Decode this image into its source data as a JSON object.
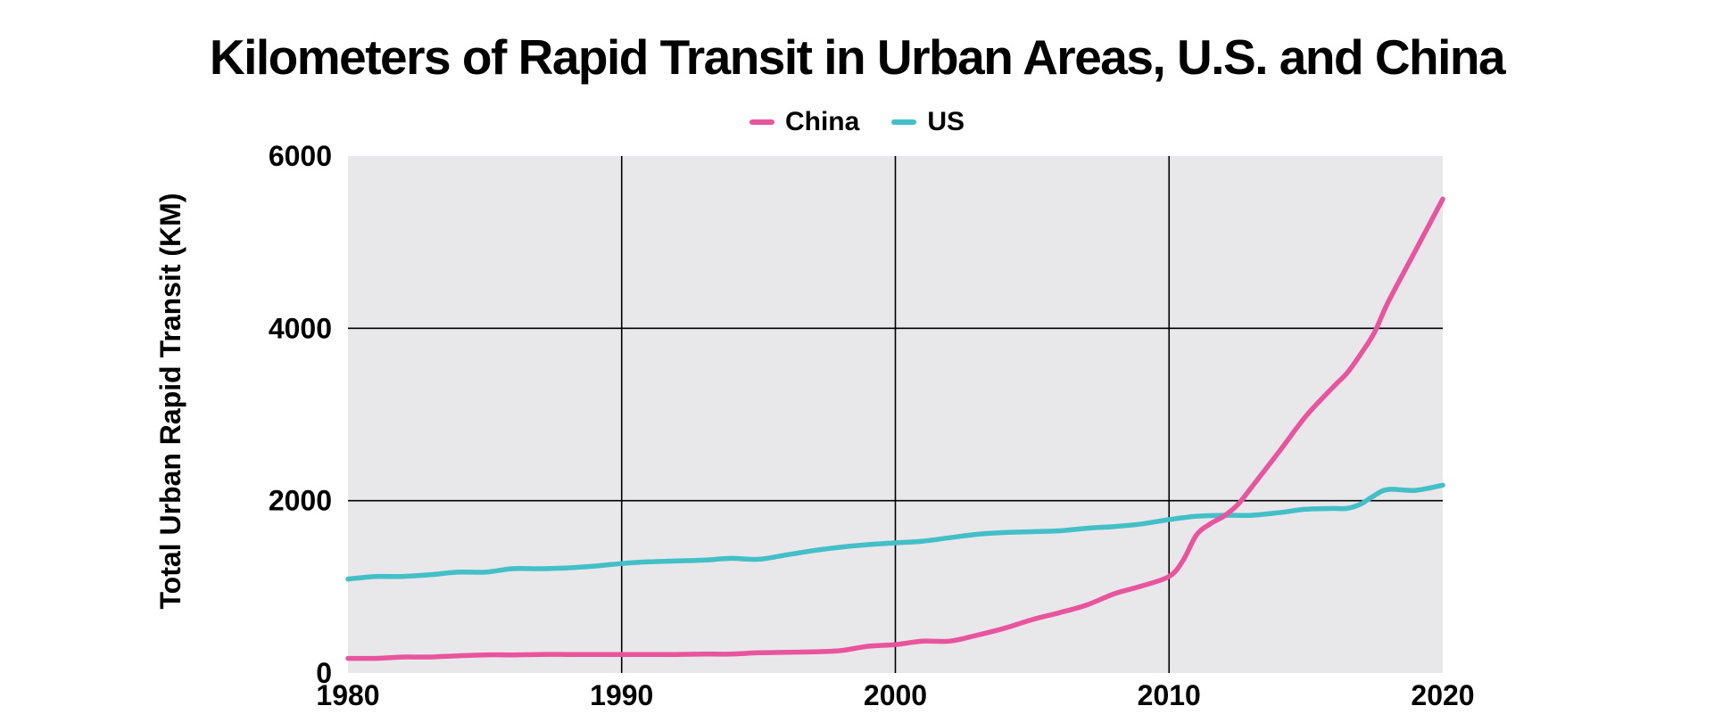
{
  "chart_data": {
    "type": "line",
    "title": "Kilometers of Rapid Transit in Urban Areas, U.S. and China",
    "xlabel": "",
    "ylabel": "Total Urban Rapid Transit (KM)",
    "xlim": [
      1980,
      2020
    ],
    "ylim": [
      0,
      6000
    ],
    "x_ticks": [
      "1980",
      "1990",
      "2000",
      "2010",
      "2020"
    ],
    "y_ticks": [
      "0",
      "2000",
      "4000",
      "6000"
    ],
    "x_tick_values": [
      1980,
      1990,
      2000,
      2010,
      2020
    ],
    "y_tick_values": [
      0,
      2000,
      4000,
      6000
    ],
    "grid": true,
    "legend_position": "top-center",
    "background": "#e8e8ea",
    "series": [
      {
        "name": "China",
        "color": "#e8559e",
        "x": [
          1980,
          1981,
          1982,
          1983,
          1984,
          1985,
          1986,
          1987,
          1988,
          1989,
          1990,
          1991,
          1992,
          1993,
          1994,
          1995,
          1996,
          1997,
          1998,
          1999,
          2000,
          2001,
          2002,
          2003,
          2004,
          2005,
          2006,
          2007,
          2008,
          2009,
          2010,
          2010.5,
          2011,
          2011.5,
          2012,
          2012.5,
          2013,
          2014,
          2015,
          2016,
          2016.5,
          2017,
          2017.5,
          2018,
          2019,
          2020
        ],
        "values": [
          170,
          170,
          185,
          185,
          200,
          210,
          210,
          215,
          215,
          215,
          215,
          215,
          215,
          220,
          220,
          235,
          240,
          245,
          260,
          310,
          330,
          370,
          370,
          440,
          520,
          620,
          700,
          790,
          920,
          1010,
          1120,
          1300,
          1600,
          1730,
          1820,
          1950,
          2150,
          2560,
          2980,
          3320,
          3480,
          3700,
          3950,
          4300,
          4900,
          5500
        ]
      },
      {
        "name": "US",
        "color": "#43bfc7",
        "x": [
          1980,
          1981,
          1982,
          1983,
          1984,
          1985,
          1986,
          1987,
          1988,
          1989,
          1990,
          1991,
          1992,
          1993,
          1994,
          1995,
          1996,
          1997,
          1998,
          1999,
          2000,
          2001,
          2002,
          2003,
          2004,
          2005,
          2006,
          2007,
          2008,
          2009,
          2010,
          2011,
          2012,
          2013,
          2014,
          2015,
          2016,
          2016.5,
          2017,
          2017.5,
          2018,
          2019,
          2020
        ],
        "values": [
          1090,
          1120,
          1120,
          1140,
          1170,
          1170,
          1210,
          1210,
          1220,
          1240,
          1270,
          1290,
          1300,
          1310,
          1330,
          1320,
          1370,
          1420,
          1460,
          1490,
          1510,
          1530,
          1570,
          1610,
          1630,
          1640,
          1650,
          1680,
          1700,
          1730,
          1780,
          1820,
          1830,
          1830,
          1860,
          1900,
          1910,
          1910,
          1960,
          2060,
          2130,
          2120,
          2180
        ]
      }
    ]
  }
}
